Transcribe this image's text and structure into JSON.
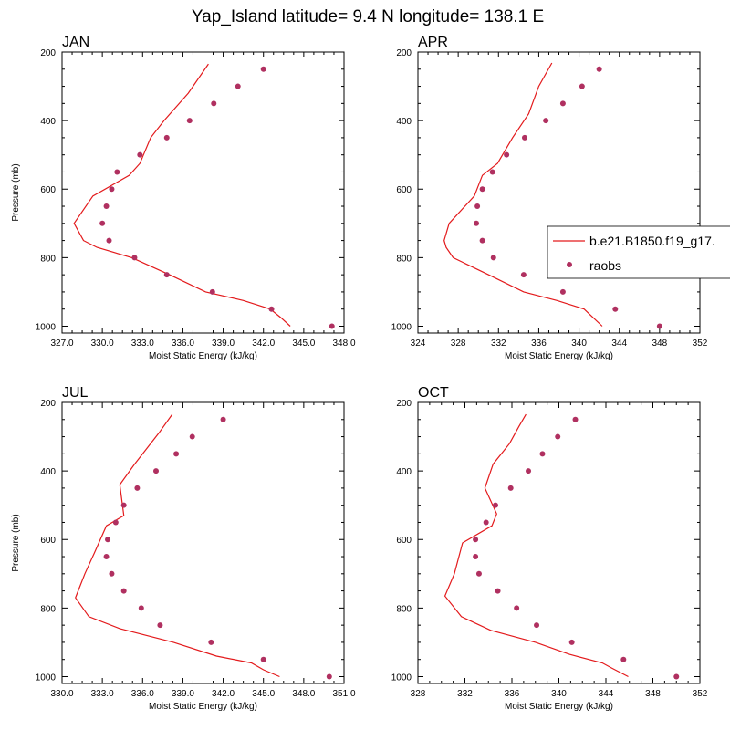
{
  "figure_title": "Yap_Island  latitude= 9.4 N longitude= 138.1 E",
  "legend": {
    "model_label": "b.e21.B1850.f19_g17.",
    "obs_label": "raobs",
    "model_color": "#e31a1c",
    "obs_color": "#b03060"
  },
  "chart_data": [
    {
      "type": "line+scatter",
      "title": "JAN",
      "xlabel": "Moist Static Energy (kJ/kg)",
      "ylabel": "Pressure (mb)",
      "xlim": [
        327,
        348
      ],
      "xticks": [
        327,
        330,
        333,
        336,
        339,
        342,
        345,
        348
      ],
      "xtick_labels": [
        "327.0",
        "330.0",
        "333.0",
        "336.0",
        "339.0",
        "342.0",
        "345.0",
        "348.0"
      ],
      "ylim": [
        1020,
        200
      ],
      "yticks": [
        200,
        400,
        600,
        800,
        1000
      ],
      "ytick_labels": [
        "200",
        "400",
        "600",
        "800",
        "1000"
      ],
      "series": [
        {
          "name": "b.e21.B1850.f19_g17.",
          "kind": "line",
          "x": [
            344.0,
            343.3,
            342.5,
            340.5,
            337.7,
            335.0,
            332.2,
            329.6,
            328.6,
            327.9,
            329.3,
            332.0,
            332.8,
            333.6,
            334.6,
            336.4,
            337.9
          ],
          "y": [
            1000,
            975,
            950,
            925,
            900,
            850,
            800,
            770,
            750,
            700,
            620,
            560,
            525,
            450,
            400,
            320,
            235
          ]
        },
        {
          "name": "raobs",
          "kind": "scatter",
          "x": [
            347.1,
            342.6,
            338.2,
            334.8,
            332.4,
            330.5,
            330.0,
            330.3,
            330.7,
            331.1,
            332.8,
            334.8,
            336.5,
            338.3,
            340.1,
            342.0
          ],
          "y": [
            1000,
            950,
            900,
            850,
            800,
            750,
            700,
            650,
            600,
            550,
            500,
            450,
            400,
            350,
            300,
            250
          ]
        }
      ]
    },
    {
      "type": "line+scatter",
      "title": "APR",
      "xlabel": "Moist Static Energy (kJ/kg)",
      "ylabel": "",
      "xlim": [
        324,
        352
      ],
      "xticks": [
        324,
        328,
        332,
        336,
        340,
        344,
        348,
        352
      ],
      "xtick_labels": [
        "324",
        "328",
        "332",
        "336",
        "340",
        "344",
        "348",
        "352"
      ],
      "ylim": [
        1020,
        200
      ],
      "yticks": [
        200,
        400,
        600,
        800,
        1000
      ],
      "ytick_labels": [
        "200",
        "400",
        "600",
        "800",
        "1000"
      ],
      "series": [
        {
          "name": "b.e21.B1850.f19_g17.",
          "kind": "line",
          "x": [
            342.3,
            341.4,
            340.5,
            337.8,
            334.5,
            331.0,
            327.5,
            326.8,
            326.6,
            327.1,
            329.6,
            330.4,
            331.9,
            333.4,
            335.0,
            336.0,
            337.3
          ],
          "y": [
            1000,
            975,
            950,
            925,
            900,
            850,
            800,
            770,
            750,
            700,
            620,
            560,
            525,
            450,
            380,
            300,
            232
          ]
        },
        {
          "name": "raobs",
          "kind": "scatter",
          "x": [
            348.0,
            343.6,
            338.4,
            334.5,
            331.5,
            330.4,
            329.8,
            329.9,
            330.4,
            331.4,
            332.8,
            334.6,
            336.7,
            338.4,
            340.3,
            342.0
          ],
          "y": [
            1000,
            950,
            900,
            850,
            800,
            750,
            700,
            650,
            600,
            550,
            500,
            450,
            400,
            350,
            300,
            250
          ]
        }
      ]
    },
    {
      "type": "line+scatter",
      "title": "JUL",
      "xlabel": "Moist Static Energy (kJ/kg)",
      "ylabel": "Pressure (mb)",
      "xlim": [
        330,
        351
      ],
      "xticks": [
        330,
        333,
        336,
        339,
        342,
        345,
        348,
        351
      ],
      "xtick_labels": [
        "330.0",
        "333.0",
        "336.0",
        "339.0",
        "342.0",
        "345.0",
        "348.0",
        "351.0"
      ],
      "ylim": [
        1020,
        200
      ],
      "yticks": [
        200,
        400,
        600,
        800,
        1000
      ],
      "ytick_labels": [
        "200",
        "400",
        "600",
        "800",
        "1000"
      ],
      "series": [
        {
          "name": "b.e21.B1850.f19_g17.",
          "kind": "line",
          "x": [
            346.2,
            345.0,
            344.1,
            341.5,
            338.3,
            334.3,
            332.0,
            331.0,
            331.7,
            332.4,
            333.3,
            334.6,
            334.3,
            335.4,
            337.2,
            338.2
          ],
          "y": [
            1000,
            980,
            960,
            940,
            900,
            860,
            825,
            770,
            700,
            640,
            560,
            530,
            440,
            380,
            290,
            235
          ]
        },
        {
          "name": "raobs",
          "kind": "scatter",
          "x": [
            349.9,
            345.0,
            341.1,
            337.3,
            335.9,
            334.6,
            333.7,
            333.3,
            333.4,
            334.0,
            334.6,
            335.6,
            337.0,
            338.5,
            339.7,
            342.0
          ],
          "y": [
            1000,
            950,
            900,
            850,
            800,
            750,
            700,
            650,
            600,
            550,
            500,
            450,
            400,
            350,
            300,
            250
          ]
        }
      ]
    },
    {
      "type": "line+scatter",
      "title": "OCT",
      "xlabel": "Moist Static Energy (kJ/kg)",
      "ylabel": "",
      "xlim": [
        328,
        352
      ],
      "xticks": [
        328,
        332,
        336,
        340,
        344,
        348,
        352
      ],
      "xtick_labels": [
        "328",
        "332",
        "336",
        "340",
        "344",
        "348",
        "352"
      ],
      "ylim": [
        1020,
        200
      ],
      "yticks": [
        200,
        400,
        600,
        800,
        1000
      ],
      "ytick_labels": [
        "200",
        "400",
        "600",
        "800",
        "1000"
      ],
      "series": [
        {
          "name": "b.e21.B1850.f19_g17.",
          "kind": "line",
          "x": [
            345.9,
            344.5,
            343.7,
            340.9,
            338.0,
            334.2,
            331.7,
            330.3,
            331.1,
            331.8,
            334.3,
            334.7,
            333.7,
            334.4,
            335.8,
            336.6,
            337.2
          ],
          "y": [
            1000,
            975,
            960,
            935,
            900,
            865,
            825,
            765,
            700,
            610,
            560,
            525,
            450,
            380,
            320,
            270,
            235
          ]
        },
        {
          "name": "raobs",
          "kind": "scatter",
          "x": [
            350.0,
            345.5,
            341.1,
            338.1,
            336.4,
            334.8,
            333.2,
            332.9,
            332.9,
            333.8,
            334.6,
            335.9,
            337.4,
            338.6,
            339.9,
            341.4
          ],
          "y": [
            1000,
            950,
            900,
            850,
            800,
            750,
            700,
            650,
            600,
            550,
            500,
            450,
            400,
            350,
            300,
            250
          ]
        }
      ]
    }
  ]
}
